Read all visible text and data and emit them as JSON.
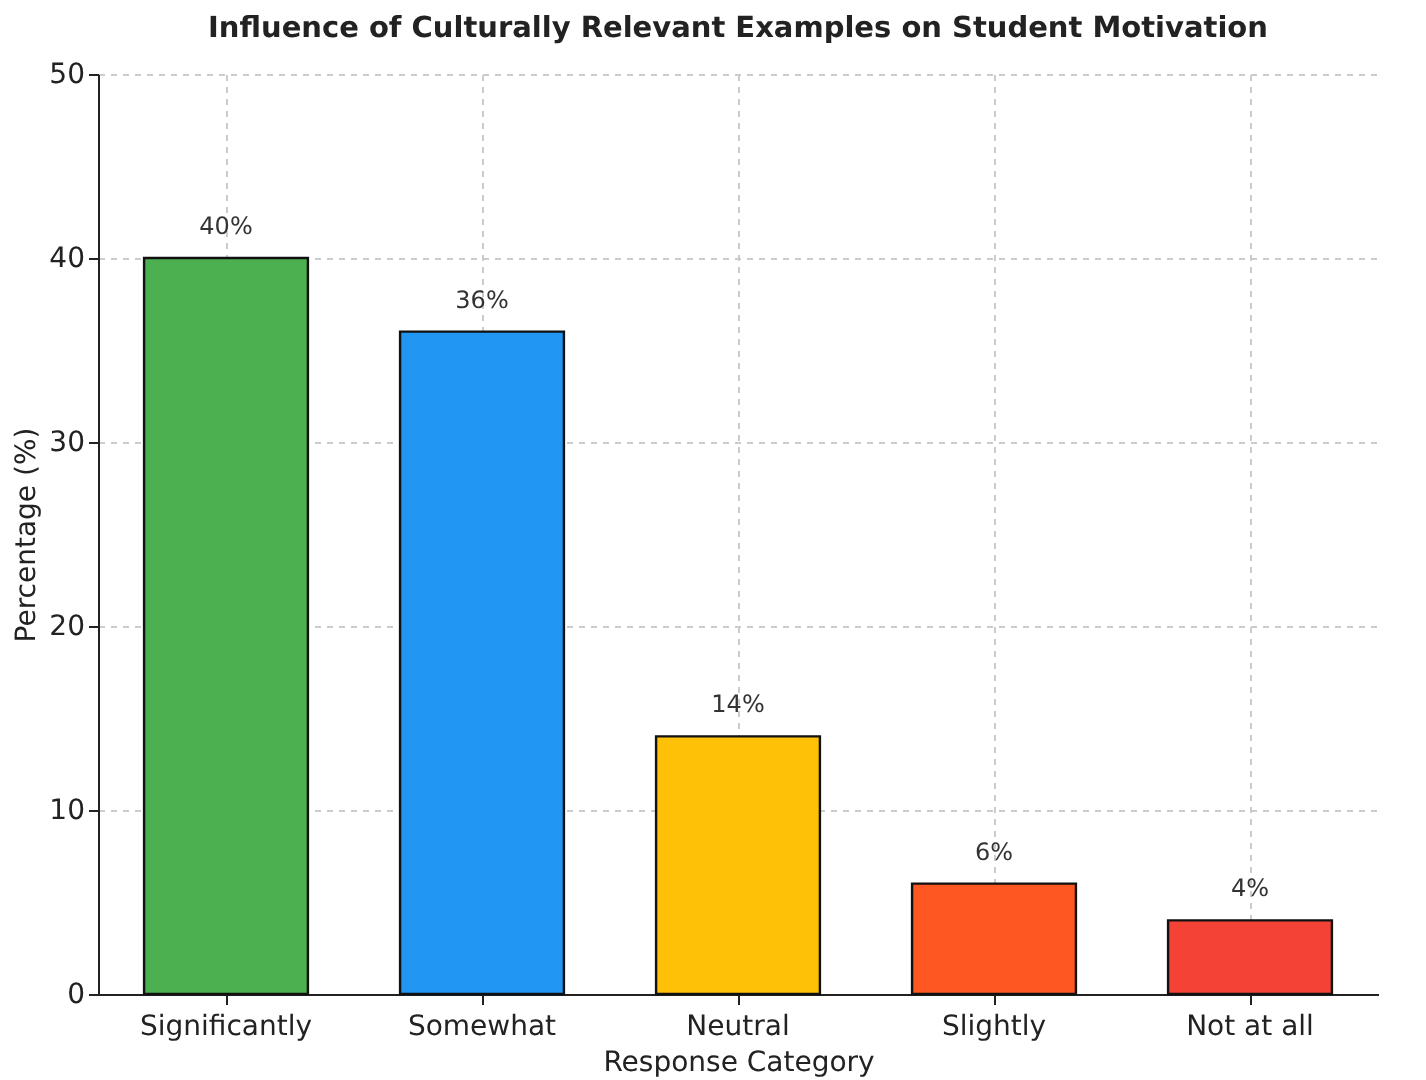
{
  "chart_data": {
    "type": "bar",
    "title": "Influence of Culturally Relevant Examples on Student Motivation",
    "xlabel": "Response Category",
    "ylabel": "Percentage (%)",
    "categories": [
      "Significantly",
      "Somewhat",
      "Neutral",
      "Slightly",
      "Not at all"
    ],
    "values": [
      40,
      36,
      14,
      6,
      4
    ],
    "colors": [
      "#4caf50",
      "#2196f3",
      "#ffc107",
      "#ff5722",
      "#f44336"
    ],
    "value_labels": [
      "40%",
      "36%",
      "14%",
      "6%",
      "4%"
    ],
    "ylim": [
      0,
      50
    ],
    "yticks": [
      0,
      10,
      20,
      30,
      40,
      50
    ],
    "grid": true
  }
}
